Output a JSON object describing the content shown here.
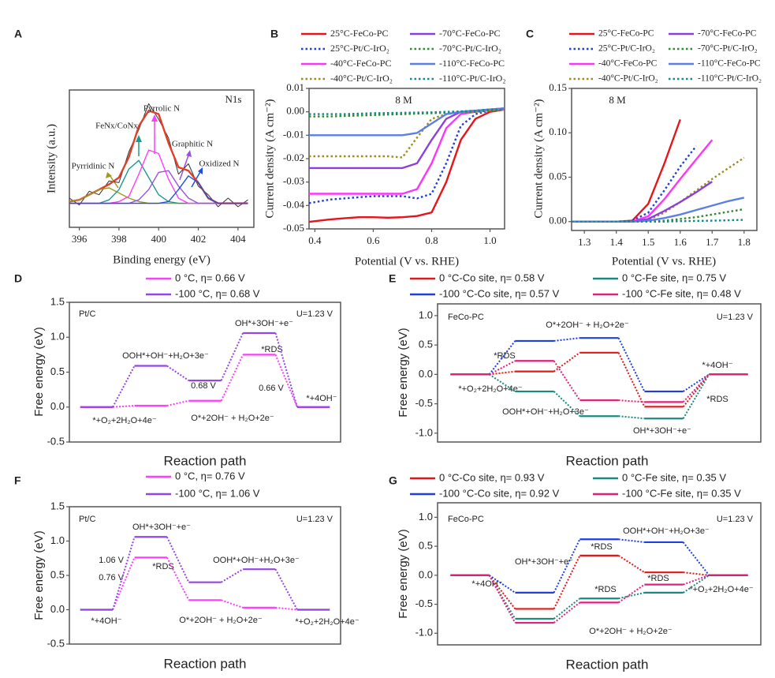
{
  "chart_data": [
    {
      "type": "line",
      "panel": "A",
      "xlabel": "Binding energy (eV)",
      "ylabel": "Intensity (a.u.)",
      "annotations": [
        {
          "text": "N1s"
        }
      ],
      "xlim": [
        395.5,
        404.8
      ],
      "xticks": [
        396,
        398,
        400,
        402,
        404
      ],
      "ylim": [
        0,
        0.8
      ],
      "x": [
        395.5,
        396,
        396.5,
        397,
        397.5,
        398,
        398.5,
        399,
        399.5,
        400,
        400.5,
        401,
        401.5,
        402,
        402.5,
        403,
        403.5,
        404,
        404.5
      ],
      "series": [
        {
          "color": "#333333",
          "values": [
            0.17,
            0.13,
            0.21,
            0.19,
            0.27,
            0.26,
            0.44,
            0.57,
            0.72,
            0.63,
            0.52,
            0.31,
            0.37,
            0.24,
            0.19,
            0.12,
            0.17,
            0.12,
            0.16
          ]
        },
        {
          "color": "#e0402a",
          "values": [
            0.15,
            0.16,
            0.19,
            0.22,
            0.25,
            0.29,
            0.41,
            0.59,
            0.68,
            0.66,
            0.49,
            0.35,
            0.33,
            0.26,
            0.17,
            0.14,
            0.14,
            0.14,
            0.14
          ]
        },
        {
          "name": "Pyrridinic N",
          "color": "#a09a1c",
          "values": [
            0.15,
            0.16,
            0.19,
            0.22,
            0.23,
            0.2,
            0.17,
            0.15,
            0.14,
            0.14,
            0.14,
            0.14,
            0.14,
            0.14,
            0.14,
            0.14,
            0.14,
            0.14,
            0.14
          ]
        },
        {
          "name": "FeNx/CoNx",
          "color": "#1a9a8a",
          "values": [
            0.14,
            0.14,
            0.14,
            0.14,
            0.16,
            0.22,
            0.34,
            0.39,
            0.29,
            0.19,
            0.15,
            0.14,
            0.14,
            0.14,
            0.14,
            0.14,
            0.14,
            0.14,
            0.14
          ]
        },
        {
          "name": "Pyrrolic N",
          "color": "#ff3cff",
          "values": [
            0.14,
            0.14,
            0.14,
            0.14,
            0.14,
            0.15,
            0.18,
            0.31,
            0.45,
            0.43,
            0.28,
            0.17,
            0.14,
            0.14,
            0.14,
            0.14,
            0.14,
            0.14,
            0.14
          ]
        },
        {
          "name": "Graphitic N",
          "color": "#9a50e0",
          "values": [
            0.14,
            0.14,
            0.14,
            0.14,
            0.14,
            0.14,
            0.14,
            0.16,
            0.22,
            0.32,
            0.33,
            0.24,
            0.17,
            0.14,
            0.14,
            0.14,
            0.14,
            0.14,
            0.14
          ]
        },
        {
          "name": "Oxidized N",
          "color": "#2050e0",
          "values": [
            0.14,
            0.14,
            0.14,
            0.14,
            0.14,
            0.14,
            0.14,
            0.14,
            0.14,
            0.14,
            0.15,
            0.22,
            0.3,
            0.26,
            0.17,
            0.14,
            0.14,
            0.14,
            0.14
          ]
        }
      ]
    },
    {
      "type": "line",
      "panel": "B",
      "xlabel": "Potential (V vs. RHE)",
      "ylabel": "Current density (A cm⁻²)",
      "annotations": [
        {
          "text": "8 M"
        }
      ],
      "xlim": [
        0.38,
        1.05
      ],
      "xticks": [
        0.4,
        0.6,
        0.8,
        {
          "value": 1,
          "label": "1.0"
        }
      ],
      "ylim": [
        -0.05,
        0.01
      ],
      "yticks": [
        -0.05,
        -0.04,
        -0.03,
        -0.02,
        -0.01,
        {
          "value": 0,
          "label": "0.00"
        },
        0.01
      ],
      "x": [
        0.38,
        0.45,
        0.5,
        0.55,
        0.6,
        0.65,
        0.7,
        0.75,
        0.8,
        0.85,
        0.9,
        0.95,
        1.0,
        1.05
      ],
      "series": [
        {
          "name": "25°C-FeCo-PC",
          "color": "#e8141b",
          "style": "solid",
          "values": [
            -0.047,
            -0.046,
            -0.0455,
            -0.045,
            -0.045,
            -0.0452,
            -0.045,
            -0.0445,
            -0.043,
            -0.03,
            -0.012,
            -0.003,
            0.0,
            0.001
          ]
        },
        {
          "name": "25°C-Pt/C-IrO₂",
          "color": "#1f3fd6",
          "style": "dotted",
          "values": [
            -0.039,
            -0.0375,
            -0.037,
            -0.0365,
            -0.036,
            -0.036,
            -0.036,
            -0.037,
            -0.035,
            -0.022,
            -0.006,
            -0.001,
            0.0005,
            0.001
          ]
        },
        {
          "name": "-40°C-FeCo-PC",
          "color": "#ff33ff",
          "style": "solid",
          "values": [
            -0.035,
            -0.035,
            -0.035,
            -0.035,
            -0.035,
            -0.035,
            -0.035,
            -0.033,
            -0.022,
            -0.007,
            -0.001,
            0.0,
            0.001,
            0.001
          ]
        },
        {
          "name": "-40°C-Pt/C-IrO₂",
          "color": "#9c8c1a",
          "style": "dotted",
          "values": [
            -0.019,
            -0.019,
            -0.019,
            -0.019,
            -0.019,
            -0.019,
            -0.0195,
            -0.011,
            -0.003,
            -0.001,
            0.0,
            0.0,
            0.0005,
            0.001
          ]
        },
        {
          "name": "-70°C-FeCo-PC",
          "color": "#8a3fe0",
          "style": "solid",
          "values": [
            -0.024,
            -0.024,
            -0.024,
            -0.024,
            -0.024,
            -0.024,
            -0.024,
            -0.022,
            -0.012,
            -0.003,
            0.0,
            0.0005,
            0.001,
            0.0015
          ]
        },
        {
          "name": "-70°C-Pt/C-IrO₂",
          "color": "#2e8b2e",
          "style": "dotted",
          "values": [
            -0.002,
            -0.002,
            -0.0018,
            -0.0016,
            -0.0014,
            -0.0012,
            -0.001,
            -0.0008,
            -0.0006,
            -0.0004,
            -0.0002,
            0.0,
            0.0005,
            0.001
          ]
        },
        {
          "name": "-110°C-FeCo-PC",
          "color": "#5b7fe6",
          "style": "solid",
          "values": [
            -0.01,
            -0.01,
            -0.01,
            -0.01,
            -0.01,
            -0.01,
            -0.01,
            -0.009,
            -0.005,
            -0.001,
            0.0,
            0.0005,
            0.001,
            0.0015
          ]
        },
        {
          "name": "-110°C-Pt/C-IrO₂",
          "color": "#138a8a",
          "style": "dotted",
          "values": [
            -0.001,
            -0.001,
            -0.001,
            -0.0008,
            -0.0006,
            -0.0005,
            -0.0004,
            -0.0003,
            -0.0002,
            0.0,
            0.0002,
            0.0005,
            0.001,
            0.001
          ]
        }
      ]
    },
    {
      "type": "line",
      "panel": "C",
      "xlabel": "Potential (V vs. RHE)",
      "ylabel": "Current density (A cm⁻²)",
      "annotations": [
        {
          "text": "8 M"
        }
      ],
      "xlim": [
        1.26,
        1.84
      ],
      "xticks": [
        1.3,
        1.4,
        1.5,
        1.6,
        1.7,
        1.8
      ],
      "ylim": [
        -0.01,
        0.15
      ],
      "yticks": [
        {
          "value": 0,
          "label": "0.00"
        },
        0.05,
        {
          "value": 0.1,
          "label": "0.10"
        },
        0.15
      ],
      "x": [
        1.26,
        1.3,
        1.35,
        1.4,
        1.45,
        1.5,
        1.55,
        1.6,
        1.65,
        1.7,
        1.75,
        1.8
      ],
      "series": [
        {
          "name": "25°C-FeCo-PC",
          "color": "#e8141b",
          "style": "solid",
          "values": [
            0,
            0,
            0,
            0,
            0.001,
            0.02,
            0.065,
            0.115,
            null,
            null,
            null,
            null
          ]
        },
        {
          "name": "25°C-Pt/C-IrO₂",
          "color": "#1f3fd6",
          "style": "dotted",
          "values": [
            0,
            0,
            0,
            0,
            0.001,
            0.01,
            0.035,
            0.062,
            0.085,
            null,
            null,
            null
          ]
        },
        {
          "name": "-40°C-FeCo-PC",
          "color": "#ff33ff",
          "style": "solid",
          "values": [
            0,
            0,
            0,
            0,
            0,
            0.006,
            0.025,
            0.048,
            0.07,
            0.092,
            null,
            null
          ]
        },
        {
          "name": "-40°C-Pt/C-IrO₂",
          "color": "#9c8c1a",
          "style": "dotted",
          "values": [
            0,
            0,
            0,
            0,
            0,
            0.002,
            0.01,
            0.022,
            0.035,
            0.048,
            0.06,
            0.072
          ]
        },
        {
          "name": "-70°C-FeCo-PC",
          "color": "#8a3fe0",
          "style": "solid",
          "values": [
            0,
            0,
            0,
            0,
            0,
            0.003,
            0.012,
            0.022,
            0.033,
            0.045,
            null,
            null
          ]
        },
        {
          "name": "-70°C-Pt/C-IrO₂",
          "color": "#2e8b2e",
          "style": "dotted",
          "values": [
            0,
            0,
            0,
            0,
            0,
            0,
            0.001,
            0.003,
            0.005,
            0.008,
            0.011,
            0.014
          ]
        },
        {
          "name": "-110°C-FeCo-PC",
          "color": "#5b7fe6",
          "style": "solid",
          "values": [
            0,
            0,
            0,
            0,
            0,
            0.001,
            0.004,
            0.008,
            0.013,
            0.018,
            0.023,
            0.027
          ]
        },
        {
          "name": "-110°C-Pt/C-IrO₂",
          "color": "#138a8a",
          "style": "dotted",
          "values": [
            0,
            0,
            0,
            0,
            0,
            0,
            0,
            0.0005,
            0.0008,
            0.001,
            0.0015,
            0.002
          ]
        }
      ]
    },
    {
      "type": "energy_diagram",
      "panel": "D",
      "xlabel": "Reaction path",
      "ylabel": "Free energy (eV)",
      "ylim": [
        -0.5,
        1.5
      ],
      "yticks": [
        -0.5,
        {
          "value": 0,
          "label": "0.0"
        },
        0.5,
        {
          "value": 1,
          "label": "1.0"
        },
        1.5
      ],
      "series": [
        {
          "name": "0 °C, η= 0.66 V",
          "color": "#ff3cff",
          "values": [
            0,
            0.02,
            0.09,
            0.75,
            0
          ]
        },
        {
          "name": "-100 °C, η= 0.68 V",
          "color": "#9346e6",
          "values": [
            0,
            0.59,
            0.38,
            1.06,
            0
          ]
        }
      ],
      "annotations": [
        {
          "text": "Pt/C"
        },
        {
          "text": "U=1.23 V"
        },
        {
          "text": "OOH*+OH⁻+H₂O+3e⁻"
        },
        {
          "text": "OH*+3OH⁻+e⁻"
        },
        {
          "text": "*RDS"
        },
        {
          "text": "0.68 V",
          "color": "#9346e6"
        },
        {
          "text": "0.66 V",
          "color": "#ff3cff"
        },
        {
          "text": "*+4OH⁻"
        },
        {
          "text": "*+O₂+2H₂O+4e⁻"
        },
        {
          "text": "O*+2OH⁻ + H₂O+2e⁻"
        }
      ]
    },
    {
      "type": "energy_diagram",
      "panel": "E",
      "xlabel": "Reaction path",
      "ylabel": "Free energy (eV)",
      "ylim": [
        -1.15,
        1.2
      ],
      "yticks": [
        {
          "value": -1,
          "label": "-1.0"
        },
        -0.5,
        {
          "value": 0,
          "label": "0.0"
        },
        0.5,
        {
          "value": 1,
          "label": "1.0"
        }
      ],
      "series": [
        {
          "name": "0 °C-Co site, η= 0.58 V",
          "color": "#e01818",
          "values": [
            0,
            0.05,
            0.37,
            -0.55,
            0
          ]
        },
        {
          "name": "0 °C-Fe site, η= 0.75 V",
          "color": "#1a8a80",
          "values": [
            0,
            -0.29,
            -0.71,
            -0.75,
            0
          ]
        },
        {
          "name": "-100 °C-Co site, η= 0.57 V",
          "color": "#1f3fe0",
          "values": [
            0,
            0.57,
            0.62,
            -0.29,
            0
          ]
        },
        {
          "name": "-100 °C-Fe site, η= 0.48 V",
          "color": "#e0207a",
          "values": [
            0,
            0.23,
            -0.44,
            -0.47,
            0
          ]
        }
      ],
      "annotations": [
        {
          "text": "FeCo-PC"
        },
        {
          "text": "U=1.23 V"
        },
        {
          "text": "*RDS",
          "color": "#2a4ee0"
        },
        {
          "text": "O*+2OH⁻ + H₂O+2e⁻"
        },
        {
          "text": "*+4OH⁻"
        },
        {
          "text": "*+O₂+2H₂O+4e⁻"
        },
        {
          "text": "*RDS"
        },
        {
          "text": "OOH*+OH⁻+H₂O+3e⁻"
        },
        {
          "text": "OH*+3OH⁻+e⁻"
        }
      ]
    },
    {
      "type": "energy_diagram",
      "panel": "F",
      "xlabel": "Reaction path",
      "ylabel": "Free energy (eV)",
      "ylim": [
        -0.5,
        1.5
      ],
      "yticks": [
        -0.5,
        {
          "value": 0,
          "label": "0.0"
        },
        0.5,
        {
          "value": 1,
          "label": "1.0"
        },
        1.5
      ],
      "series": [
        {
          "name": "0 °C, η= 0.76 V",
          "color": "#ff3cff",
          "values": [
            0,
            0.76,
            0.14,
            0.03,
            0
          ]
        },
        {
          "name": "-100 °C, η= 1.06 V",
          "color": "#9346e6",
          "values": [
            0,
            1.06,
            0.4,
            0.59,
            0
          ]
        }
      ],
      "annotations": [
        {
          "text": "Pt/C"
        },
        {
          "text": "U=1.23 V"
        },
        {
          "text": "OH*+3OH⁻+e⁻"
        },
        {
          "text": "1.06 V",
          "color": "#9346e6"
        },
        {
          "text": "0.76 V",
          "color": "#ff3cff"
        },
        {
          "text": "*RDS"
        },
        {
          "text": "OOH*+OH⁻+H₂O+3e⁻"
        },
        {
          "text": "*+4OH⁻"
        },
        {
          "text": "O*+2OH⁻ + H₂O+2e⁻"
        },
        {
          "text": "*+O₂+2H₂O+4e⁻"
        }
      ]
    },
    {
      "type": "energy_diagram",
      "panel": "G",
      "xlabel": "Reaction path",
      "ylabel": "Free energy (eV)",
      "ylim": [
        -1.2,
        1.25
      ],
      "yticks": [
        {
          "value": -1,
          "label": "-1.0"
        },
        -0.5,
        {
          "value": 0,
          "label": "0.0"
        },
        0.5,
        {
          "value": 1,
          "label": "1.0"
        }
      ],
      "series": [
        {
          "name": "0 °C-Co site, η= 0.93 V",
          "color": "#e01818",
          "values": [
            0,
            -0.58,
            0.34,
            0.05,
            0
          ]
        },
        {
          "name": "0 °C-Fe site, η= 0.35 V",
          "color": "#1a8a80",
          "values": [
            0,
            -0.75,
            -0.4,
            -0.3,
            0
          ]
        },
        {
          "name": "-100 °C-Co site, η= 0.92 V",
          "color": "#1f3fe0",
          "values": [
            0,
            -0.3,
            0.62,
            0.57,
            0
          ]
        },
        {
          "name": "-100 °C-Fe site, η= 0.35 V",
          "color": "#e0207a",
          "values": [
            0,
            -0.82,
            -0.47,
            -0.16,
            0
          ]
        }
      ],
      "annotations": [
        {
          "text": "FeCo-PC"
        },
        {
          "text": "U=1.23 V"
        },
        {
          "text": "OOH*+OH⁻+H₂O+3e⁻"
        },
        {
          "text": "*RDS"
        },
        {
          "text": "OH*+3OH⁻+e⁻"
        },
        {
          "text": "*+4OH⁻"
        },
        {
          "text": "*RDS",
          "color": "#1a9a8a"
        },
        {
          "text": "*RDS",
          "color": "#e0207a"
        },
        {
          "text": "*+O₂+2H₂O+4e⁻"
        },
        {
          "text": "O*+2OH⁻ + H₂O+2e⁻"
        }
      ]
    }
  ]
}
